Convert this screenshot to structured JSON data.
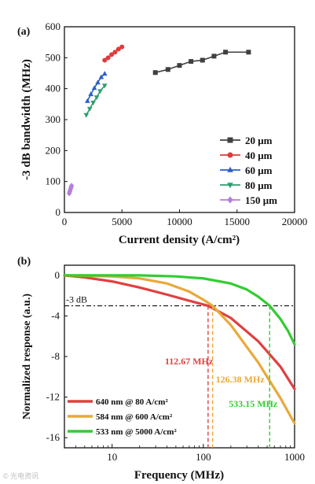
{
  "chart_data": [
    {
      "panel_label": "(a)",
      "type": "scatter",
      "xlabel": "Current density (A/cm²)",
      "ylabel": "-3 dB bandwidth (MHz)",
      "xlim": [
        0,
        20000
      ],
      "ylim": [
        0,
        600
      ],
      "xticks": [
        0,
        5000,
        10000,
        15000,
        20000
      ],
      "yticks": [
        0,
        100,
        200,
        300,
        400,
        500,
        600
      ],
      "legend_position": "bottom-right",
      "series": [
        {
          "name": "20 μm",
          "color": "#404040",
          "marker": "square",
          "x": [
            7900,
            9000,
            10000,
            11000,
            12000,
            13000,
            14000,
            16000
          ],
          "y": [
            452,
            462,
            475,
            488,
            492,
            505,
            518,
            518
          ]
        },
        {
          "name": "40 μm",
          "color": "#e03a3a",
          "marker": "circle",
          "x": [
            3500,
            3800,
            4100,
            4400,
            4700,
            5000
          ],
          "y": [
            492,
            500,
            510,
            518,
            528,
            535
          ]
        },
        {
          "name": "60 μm",
          "color": "#2a5fc8",
          "marker": "triangle-up",
          "x": [
            2000,
            2300,
            2600,
            2900,
            3200,
            3500
          ],
          "y": [
            360,
            382,
            402,
            420,
            437,
            448
          ]
        },
        {
          "name": "80 μm",
          "color": "#2f9e6e",
          "marker": "triangle-down",
          "x": [
            1900,
            2200,
            2500,
            2800,
            3100,
            3500
          ],
          "y": [
            315,
            335,
            355,
            372,
            392,
            410
          ]
        },
        {
          "name": "150 μm",
          "color": "#b57edc",
          "marker": "diamond",
          "x": [
            420,
            470,
            520,
            570,
            620
          ],
          "y": [
            62,
            68,
            74,
            80,
            86
          ]
        }
      ]
    },
    {
      "panel_label": "(b)",
      "type": "line",
      "xlabel": "Frequency (MHz)",
      "ylabel": "Normalized response (a.u.)",
      "x_scale": "log",
      "xlim": [
        3,
        1000
      ],
      "ylim": [
        -17,
        1
      ],
      "xticks": [
        10,
        100,
        1000
      ],
      "yticks": [
        0,
        -4,
        -8,
        -12,
        -16
      ],
      "reference_line": {
        "y": -3,
        "label": "-3 dB"
      },
      "legend_position": "bottom-left",
      "series": [
        {
          "name": "640 nm @ 80 A/cm²",
          "color": "#e04040",
          "cutoff_mhz": 112.67,
          "cutoff_label": "112.67 MHz",
          "x": [
            3,
            5,
            10,
            20,
            40,
            70,
            112.67,
            200,
            400,
            700,
            1000
          ],
          "y": [
            0,
            -0.2,
            -0.6,
            -1.2,
            -1.9,
            -2.5,
            -3.0,
            -4.2,
            -6.5,
            -9.0,
            -11.2
          ]
        },
        {
          "name": "584 nm @ 600 A/cm²",
          "color": "#e8a93a",
          "cutoff_mhz": 126.38,
          "cutoff_label": "126.38 MHz",
          "x": [
            3,
            10,
            20,
            40,
            70,
            100,
            126.38,
            200,
            400,
            700,
            1000
          ],
          "y": [
            0,
            -0.1,
            -0.3,
            -0.8,
            -1.6,
            -2.4,
            -3.0,
            -4.9,
            -8.6,
            -12.1,
            -14.6
          ]
        },
        {
          "name": "533 nm @ 5000 A/cm²",
          "color": "#33cc33",
          "cutoff_mhz": 533.15,
          "cutoff_label": "533.15 MHz",
          "x": [
            3,
            20,
            50,
            100,
            200,
            300,
            400,
            533.15,
            700,
            850,
            1000
          ],
          "y": [
            0,
            0,
            -0.1,
            -0.3,
            -0.8,
            -1.4,
            -2.1,
            -3.0,
            -4.3,
            -5.5,
            -6.8
          ]
        }
      ]
    }
  ],
  "watermark": "© 光电资讯"
}
